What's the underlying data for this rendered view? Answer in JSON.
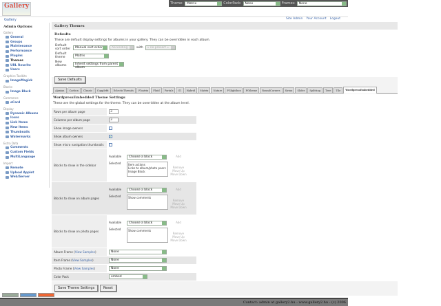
{
  "topbar": {
    "theme_label": "Theme:",
    "theme_value": "Matrix",
    "colorpack_label": "ColorPack:",
    "colorpack_value": "None",
    "frames_label": "Frames:",
    "frames_value": "None"
  },
  "logo": {
    "text": "Gallery"
  },
  "breadcrumb": "Gallery",
  "toplinks": [
    "Site Admin",
    "Your Account",
    "Logout"
  ],
  "sidebar": {
    "title": "Admin Options",
    "groups": [
      {
        "label": "Gallery",
        "items": [
          "General",
          "Groups",
          "Maintenance",
          "Performance",
          "Plugins",
          "Themes",
          "URL Rewrite",
          "Users"
        ]
      },
      {
        "label": "Graphics Toolkits",
        "items": [
          "ImageMagick"
        ]
      },
      {
        "label": "Blocks",
        "items": [
          "Image Block"
        ]
      },
      {
        "label": "Commerce",
        "items": [
          "eCard"
        ]
      },
      {
        "label": "Display",
        "items": [
          "Dynamic Albums",
          "Icons",
          "Link Items",
          "New Items",
          "Thumbnails",
          "Watermarks"
        ]
      },
      {
        "label": "Extra Data",
        "items": [
          "Comments",
          "Custom Fields",
          "MultiLanguage"
        ]
      },
      {
        "label": "Import",
        "items": [
          "Remote",
          "Upload Applet",
          "Web/Server"
        ]
      }
    ],
    "current": "Themes"
  },
  "main": {
    "title": "Gallery Themes",
    "defaults": {
      "heading": "Defaults",
      "description": "These are default display settings for albums in your gallery. They can be overridden in each album.",
      "sort_label": "Default sort order",
      "sort_value": "Manual sort order",
      "direction_value": "Ascending",
      "with_label": "with",
      "with_value": "« no presort »",
      "theme_label": "Default theme",
      "theme_value": "Matrix",
      "new_albums_label": "New albums",
      "new_albums_value": "Inherit settings from parent album",
      "save": "Save Defaults"
    },
    "tabs": [
      "Ajaxian",
      "Carbon",
      "Classic",
      "Cupplefit",
      "EclecticThreads",
      "Floatrix",
      "Fluid",
      "Fortals",
      "G1",
      "Hybrid",
      "Matrix",
      "Nature",
      "PGlightbox",
      "PGtheme",
      "RoundCorners",
      "Siriux",
      "Slider",
      "Splitting",
      "Tree",
      "Tile",
      "WordpressEmbedded"
    ],
    "active_tab": "WordpressEmbedded",
    "theme_settings": {
      "heading": "WordpressEmbedded Theme Settings",
      "description": "These are the global settings for the theme. They can be overridden at the album level.",
      "rows_label": "Rows per album page",
      "rows_value": "3",
      "cols_label": "Columns per album page",
      "cols_value": "3",
      "image_owners_label": "Show image owners",
      "image_owners": false,
      "album_owners_label": "Show album owners",
      "album_owners": true,
      "micro_nav_label": "Show micro navigation thumbnails",
      "micro_nav": false,
      "available_label": "Available",
      "selected_label": "Selected",
      "choose": "Choose a block",
      "add": "Add",
      "remove": "Remove",
      "move_up": "Move Up",
      "move_down": "Move Down",
      "sidebar_blocks_label": "Blocks to show in the sidebar",
      "sidebar_blocks": [
        "Item actions",
        "Links to album/photo peers",
        "Image Block"
      ],
      "album_blocks_label": "Blocks to show on album pages",
      "album_blocks": [
        "Show comments"
      ],
      "photo_blocks_label": "Blocks to show on photo pages",
      "photo_blocks": [
        "Show comments"
      ],
      "view_samples": "View Samples",
      "album_frame_label": "Album Frame",
      "album_frame": "None",
      "item_frame_label": "Item Frame",
      "item_frame": "None",
      "photo_frame_label": "Photo Frame",
      "photo_frame": "None",
      "color_pack_label": "Color Pack",
      "color_pack": "embed",
      "save": "Save Theme Settings",
      "reset": "Reset"
    }
  },
  "footer": "Contact: admin at gallery2.hu - www.gallery2.hu - (c) 2006"
}
